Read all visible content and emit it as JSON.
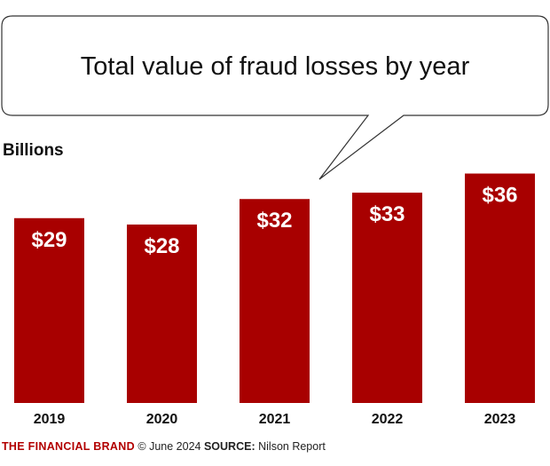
{
  "colors": {
    "bar": "#a80000",
    "bar_label": "#ffffff",
    "brand": "#b20000",
    "text": "#111111",
    "bubble_fill": "#ffffff",
    "bubble_stroke": "#333333"
  },
  "chart_data": {
    "type": "bar",
    "title": "Total value of fraud losses by year",
    "ylabel": "Billions",
    "xlabel": "",
    "categories": [
      "2019",
      "2020",
      "2021",
      "2022",
      "2023"
    ],
    "values": [
      29,
      28,
      32,
      33,
      36
    ],
    "data_labels": [
      "$29",
      "$28",
      "$32",
      "$33",
      "$36"
    ],
    "ylim": [
      0,
      38
    ],
    "grid": false,
    "legend": "none"
  },
  "footer": {
    "brand": "THE FINANCIAL BRAND",
    "date": "© June 2024",
    "source_label": "SOURCE:",
    "source": "Nilson Report"
  }
}
